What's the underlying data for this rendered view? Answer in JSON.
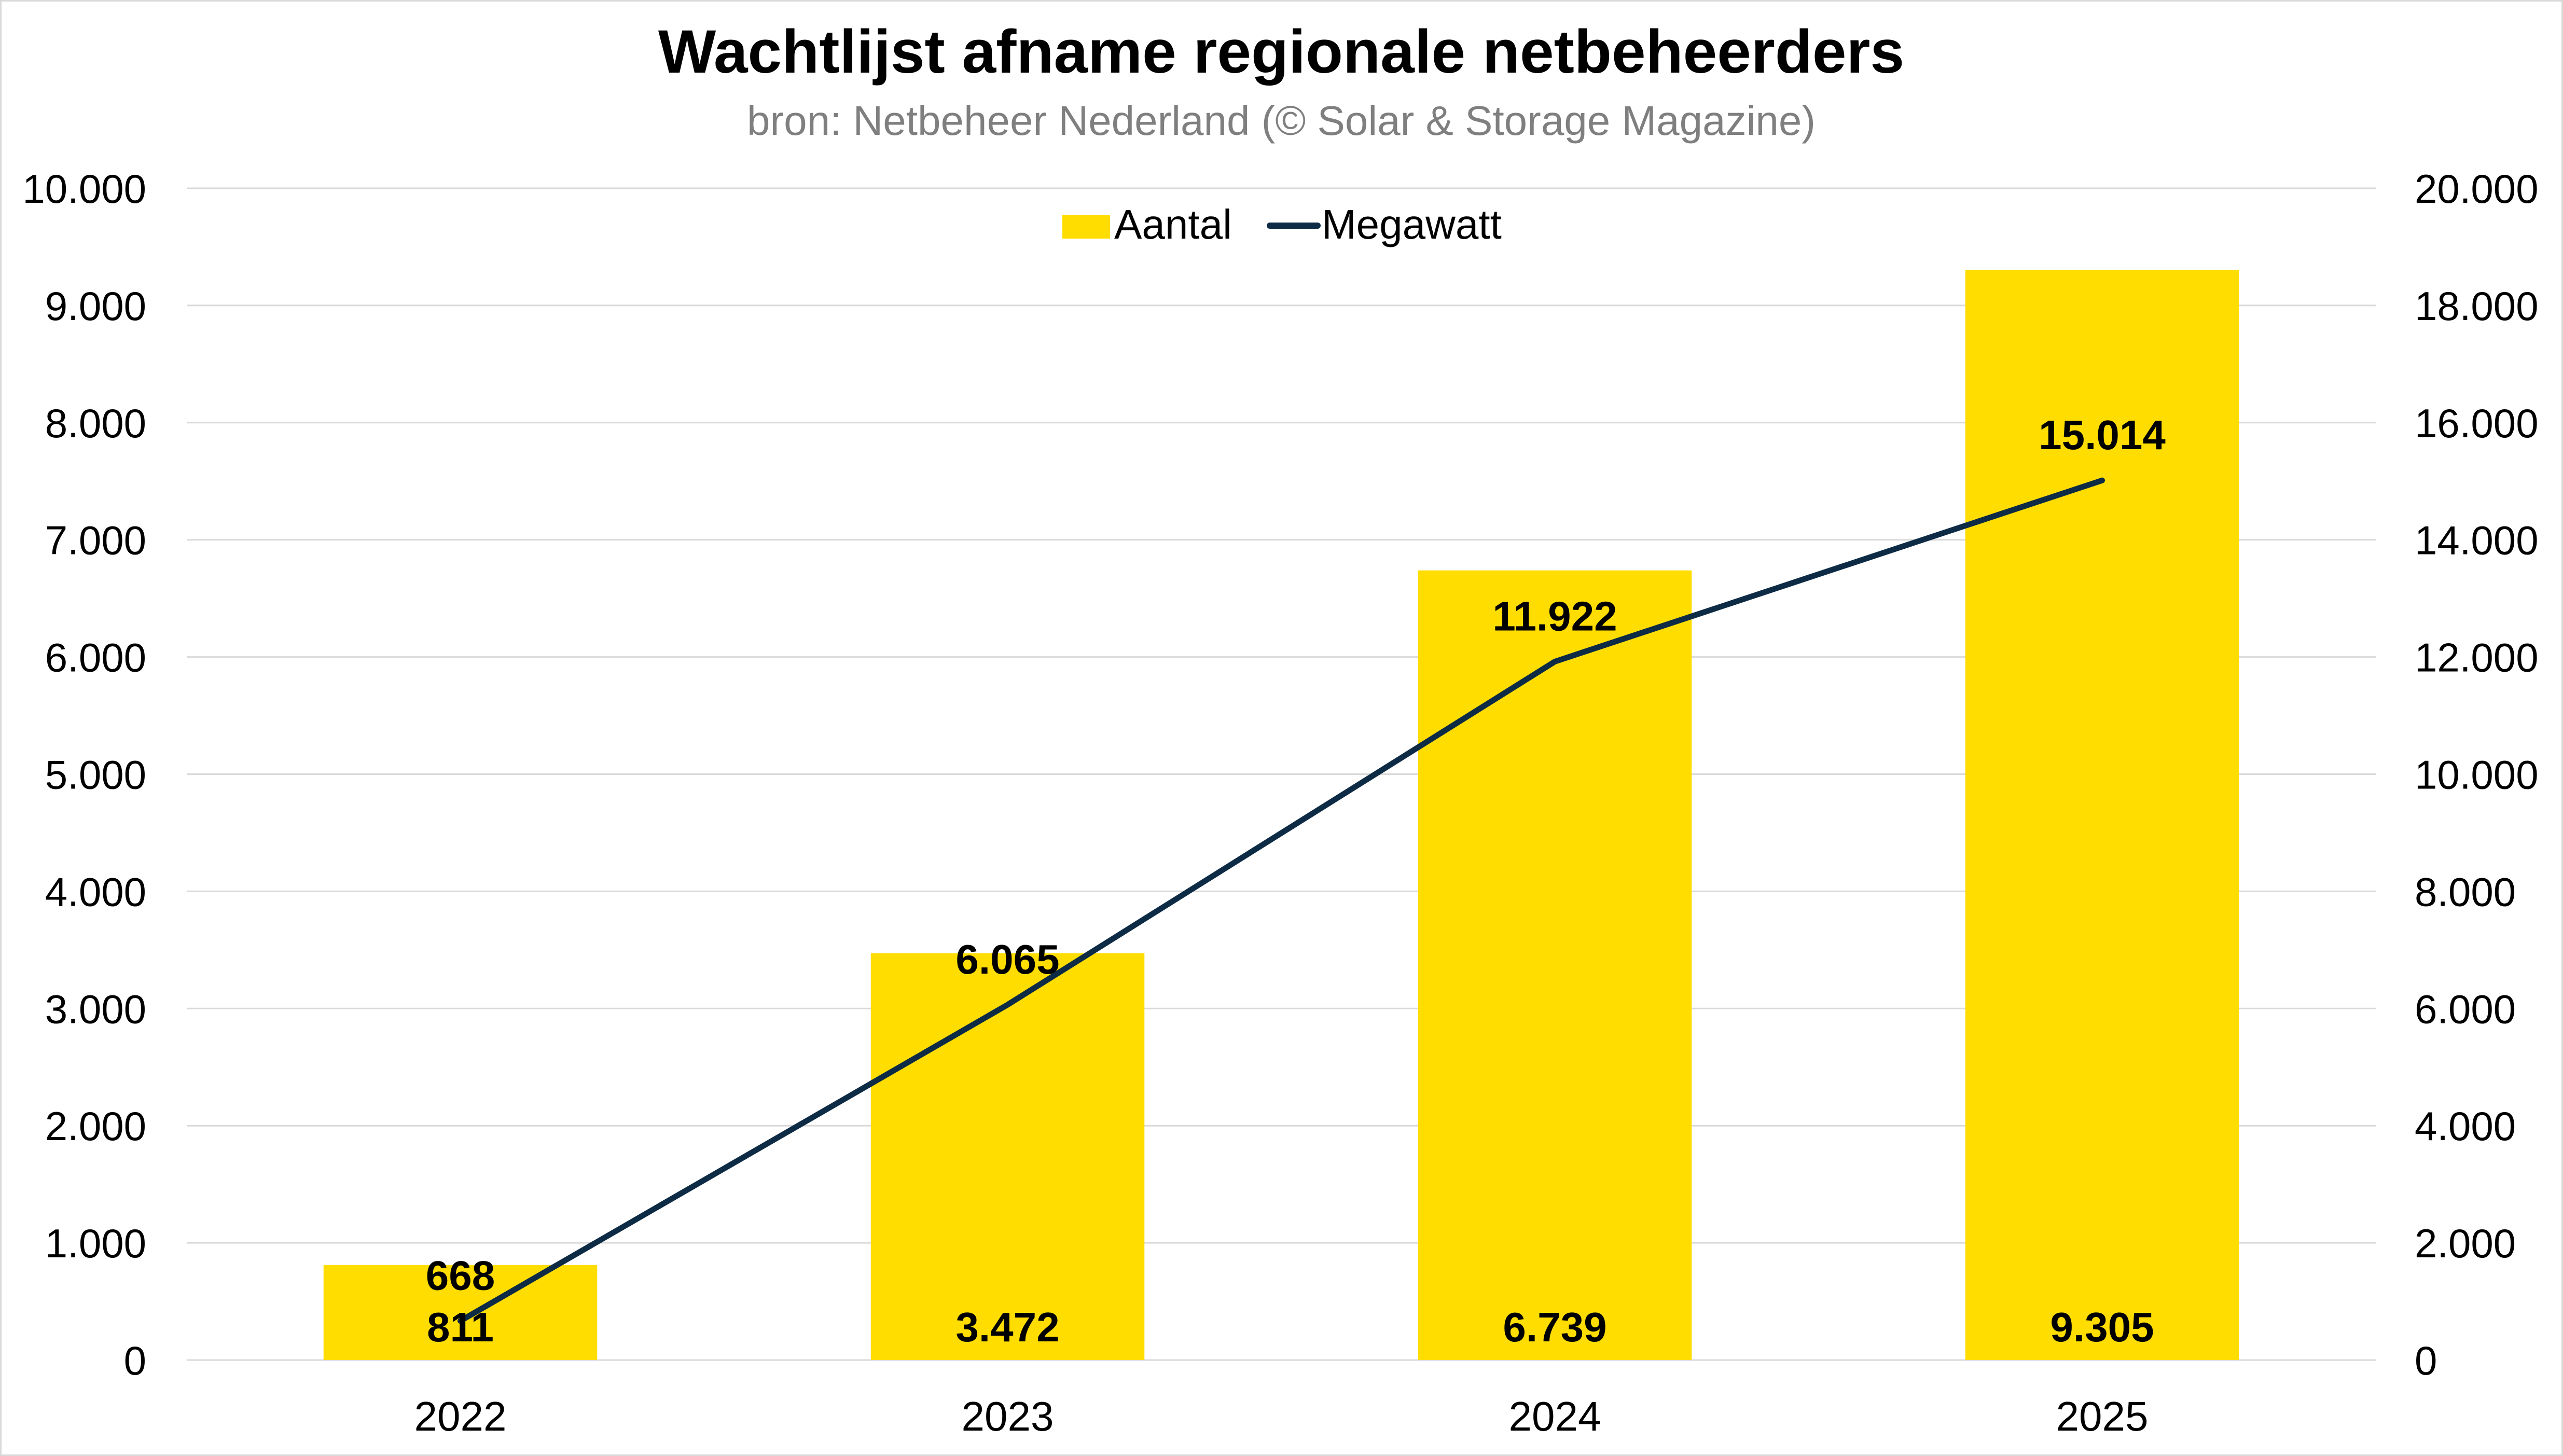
{
  "chart_data": {
    "type": "bar",
    "title": "Wachtlijst afname regionale netbeheerders",
    "subtitle": "bron: Netbeheer Nederland (© Solar & Storage Magazine)",
    "categories": [
      "2022",
      "2023",
      "2024",
      "2025"
    ],
    "series": [
      {
        "name": "Aantal",
        "type": "bar",
        "axis": "left",
        "color": "#FFDD00",
        "values": [
          811,
          3472,
          6739,
          9305
        ],
        "labels": [
          "811",
          "3.472",
          "6.739",
          "9.305"
        ]
      },
      {
        "name": "Megawatt",
        "type": "line",
        "axis": "right",
        "color": "#0D2B45",
        "values": [
          668,
          6065,
          11922,
          15014
        ],
        "labels": [
          "668",
          "6.065",
          "11.922",
          "15.014"
        ]
      }
    ],
    "left_axis": {
      "ylim": [
        0,
        10000
      ],
      "ticks": [
        0,
        1000,
        2000,
        3000,
        4000,
        5000,
        6000,
        7000,
        8000,
        9000,
        10000
      ],
      "tick_labels": [
        "0",
        "1.000",
        "2.000",
        "3.000",
        "4.000",
        "5.000",
        "6.000",
        "7.000",
        "8.000",
        "9.000",
        "10.000"
      ]
    },
    "right_axis": {
      "ylim": [
        0,
        20000
      ],
      "ticks": [
        0,
        2000,
        4000,
        6000,
        8000,
        10000,
        12000,
        14000,
        16000,
        18000,
        20000
      ],
      "tick_labels": [
        "0",
        "2.000",
        "4.000",
        "6.000",
        "8.000",
        "10.000",
        "12.000",
        "14.000",
        "16.000",
        "18.000",
        "20.000"
      ]
    },
    "grid": true,
    "legend_position": "top-center",
    "colors": {
      "gridline": "#d9d9d9",
      "text": "#000000",
      "subtitle": "#7f7f7f"
    }
  }
}
